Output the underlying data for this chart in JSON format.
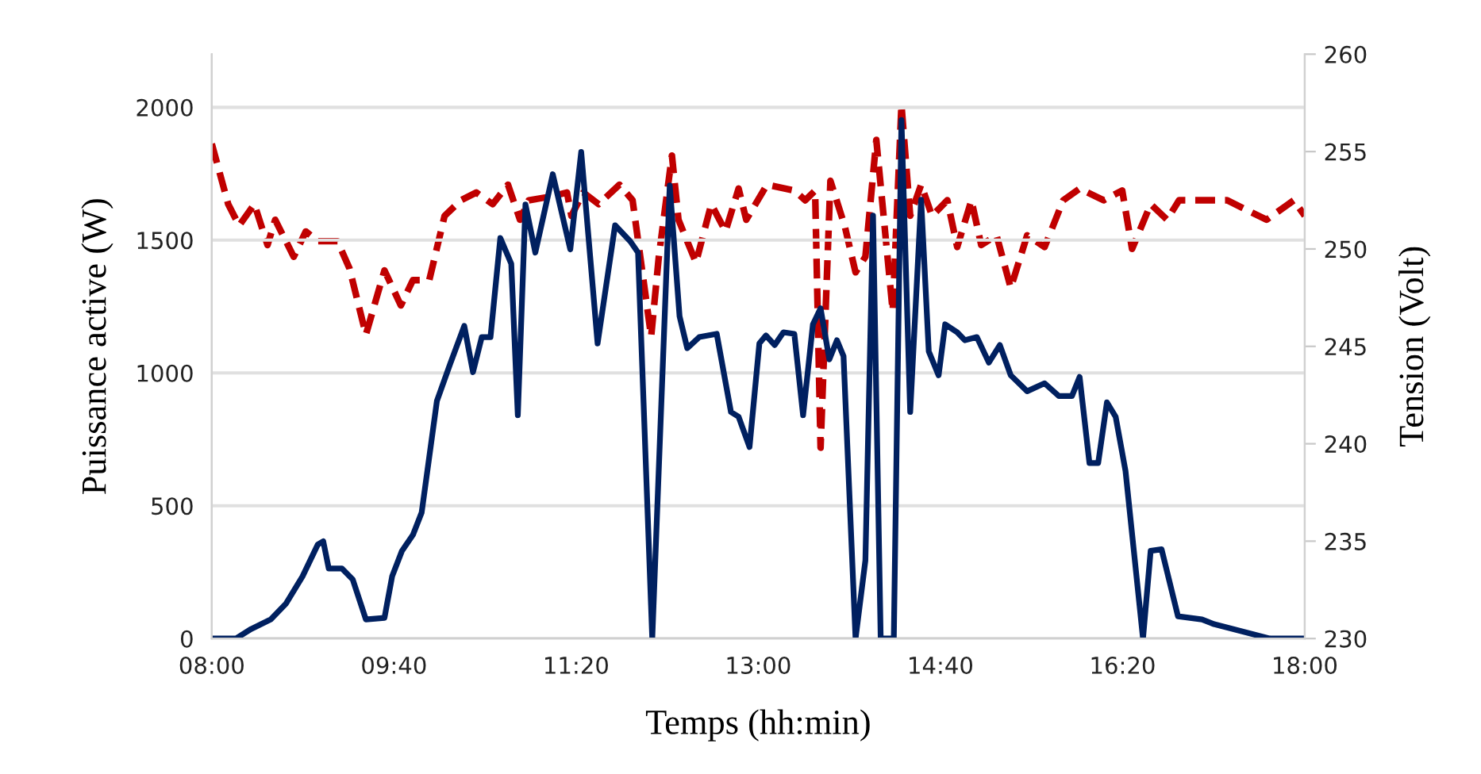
{
  "chart_data": {
    "type": "line",
    "xlabel": "Temps (hh:min)",
    "ylabel": "Puissance active (W)",
    "y2label": "Tension (Volt)",
    "xlim": [
      8,
      18
    ],
    "xticks": [
      {
        "value": 8,
        "label": "08:00"
      },
      {
        "value": 9.6667,
        "label": "09:40"
      },
      {
        "value": 11.3333,
        "label": "11:20"
      },
      {
        "value": 13,
        "label": "13:00"
      },
      {
        "value": 14.6667,
        "label": "14:40"
      },
      {
        "value": 16.3333,
        "label": "16:20"
      },
      {
        "value": 18,
        "label": "18:00"
      }
    ],
    "ylim": [
      0,
      2200
    ],
    "yticks": [
      0,
      500,
      1000,
      1500,
      2000
    ],
    "y2lim": [
      230,
      260
    ],
    "y2ticks": [
      230,
      235,
      240,
      245,
      250,
      255,
      260
    ],
    "grid": "y",
    "series": [
      {
        "color": "#002060",
        "line_style": "solid",
        "x": [
          8.0,
          8.22,
          8.36,
          8.54,
          8.68,
          8.83,
          8.97,
          9.02,
          9.07,
          9.19,
          9.29,
          9.41,
          9.58,
          9.65,
          9.74,
          9.84,
          9.92,
          10.06,
          10.18,
          10.31,
          10.39,
          10.47,
          10.55,
          10.64,
          10.74,
          10.8,
          10.87,
          10.96,
          11.12,
          11.28,
          11.38,
          11.53,
          11.69,
          11.83,
          11.9,
          12.03,
          12.19,
          12.28,
          12.35,
          12.46,
          12.62,
          12.75,
          12.82,
          12.92,
          13.01,
          13.07,
          13.15,
          13.23,
          13.33,
          13.41,
          13.5,
          13.57,
          13.65,
          13.72,
          13.78,
          13.89,
          13.98,
          14.05,
          14.12,
          14.24,
          14.31,
          14.39,
          14.49,
          14.56,
          14.65,
          14.71,
          14.82,
          14.89,
          15.0,
          15.11,
          15.21,
          15.31,
          15.46,
          15.62,
          15.75,
          15.87,
          15.94,
          16.03,
          16.11,
          16.19,
          16.27,
          16.36,
          16.52,
          16.59,
          16.69,
          16.84,
          17.06,
          17.17,
          17.68,
          18.0
        ],
        "values": [
          0,
          0,
          36,
          72,
          132,
          234,
          354,
          366,
          264,
          264,
          222,
          72,
          78,
          234,
          330,
          390,
          474,
          895,
          1033,
          1177,
          1003,
          1135,
          1135,
          1508,
          1411,
          841,
          1634,
          1453,
          1748,
          1465,
          1832,
          1111,
          1556,
          1495,
          1453,
          0,
          1706,
          1213,
          1093,
          1135,
          1147,
          853,
          835,
          721,
          1111,
          1141,
          1105,
          1153,
          1147,
          841,
          1183,
          1243,
          1051,
          1123,
          1063,
          0,
          294,
          1592,
          0,
          0,
          1952,
          853,
          1652,
          1081,
          991,
          1183,
          1153,
          1123,
          1135,
          1039,
          1105,
          991,
          931,
          961,
          913,
          913,
          985,
          661,
          661,
          889,
          835,
          631,
          0,
          330,
          336,
          84,
          72,
          54,
          0,
          0
        ]
      },
      {
        "color": "#c00000",
        "line_style": "dashed",
        "axis": "y2",
        "x": [
          8.0,
          8.15,
          8.25,
          8.39,
          8.51,
          8.58,
          8.75,
          8.86,
          8.97,
          9.15,
          9.26,
          9.41,
          9.58,
          9.73,
          9.84,
          9.99,
          10.13,
          10.28,
          10.42,
          10.57,
          10.71,
          10.82,
          10.9,
          11.11,
          11.25,
          11.29,
          11.4,
          11.54,
          11.73,
          11.85,
          12.02,
          12.09,
          12.21,
          12.27,
          12.43,
          12.57,
          12.7,
          12.82,
          12.89,
          13.08,
          13.33,
          13.43,
          13.52,
          13.57,
          13.66,
          13.79,
          13.89,
          13.98,
          14.08,
          14.23,
          14.31,
          14.39,
          14.49,
          14.59,
          14.73,
          14.82,
          14.95,
          15.04,
          15.18,
          15.31,
          15.46,
          15.62,
          15.79,
          15.94,
          16.16,
          16.33,
          16.42,
          16.59,
          16.74,
          16.85,
          17.14,
          17.29,
          17.65,
          17.9,
          18.0
        ],
        "values": [
          255.4,
          252.3,
          251.2,
          252.3,
          250.2,
          251.5,
          249.6,
          250.9,
          250.4,
          250.4,
          249.0,
          245.6,
          248.9,
          247.1,
          248.4,
          248.4,
          251.7,
          252.5,
          252.9,
          252.3,
          253.3,
          251.5,
          252.5,
          252.7,
          252.9,
          251.7,
          252.9,
          252.3,
          253.3,
          252.5,
          245.5,
          249.6,
          254.8,
          251.5,
          249.3,
          252.3,
          250.9,
          253.1,
          251.5,
          253.3,
          253.0,
          252.5,
          253.0,
          239.8,
          253.5,
          251.2,
          248.8,
          249.6,
          255.6,
          246.8,
          257.4,
          251.7,
          253.3,
          251.7,
          252.5,
          250.1,
          252.5,
          250.2,
          250.7,
          248.0,
          250.7,
          250.1,
          252.5,
          253.1,
          252.5,
          253.0,
          250.0,
          252.3,
          251.5,
          252.5,
          252.5,
          252.5,
          251.5,
          252.5,
          251.7
        ]
      }
    ]
  }
}
